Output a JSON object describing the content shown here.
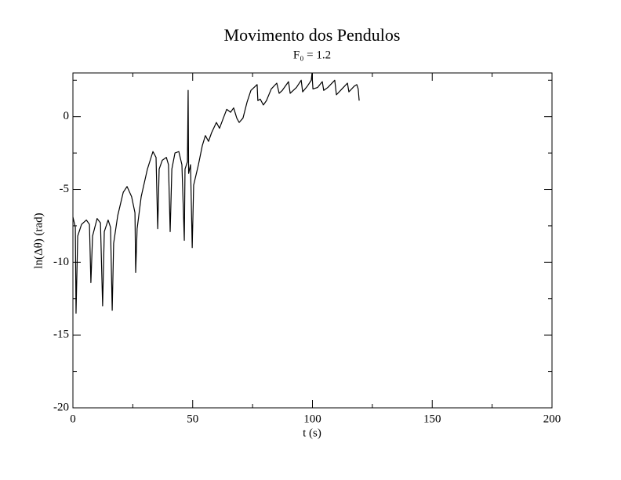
{
  "chart_data": {
    "type": "line",
    "title": "Movimento dos Pendulos",
    "subtitle": "F₀ = 1.2",
    "x_label": "t (s)",
    "y_label": "ln(Δθ) (rad)",
    "x": [
      0,
      1,
      1.3,
      2,
      3.6,
      5.6,
      6.9,
      7.5,
      8.2,
      10.1,
      11.5,
      12.4,
      13.1,
      14.7,
      15.7,
      16.4,
      17,
      18.7,
      21,
      22.6,
      24.5,
      25.9,
      26.2,
      26.8,
      28.5,
      31.1,
      33.4,
      34.7,
      35.4,
      36,
      37.3,
      39,
      39.9,
      40.6,
      41.3,
      42.6,
      44.2,
      45.5,
      46.5,
      46.8,
      47.8,
      48.1,
      48.3,
      49.1,
      49.8,
      50.4,
      52.4,
      54,
      55.3,
      56.6,
      57.9,
      59.9,
      61.2,
      62.8,
      64.2,
      65.8,
      67.1,
      68.4,
      69.4,
      71,
      72.7,
      74.3,
      76.9,
      77.2,
      78.2,
      79.5,
      80.8,
      82.8,
      85.1,
      86.1,
      87.4,
      90,
      90.7,
      93.3,
      95.3,
      95.9,
      97.9,
      99.5,
      99.8,
      100.2,
      102.1,
      104.1,
      104.7,
      106.4,
      109.3,
      110,
      112.3,
      114.6,
      115.2,
      117.5,
      118.5,
      119.1,
      119.5
    ],
    "series": [
      {
        "color": "#000000",
        "values": [
          -6.9,
          -7.6,
          -13.5,
          -8.2,
          -7.4,
          -7.1,
          -7.4,
          -11.4,
          -8.2,
          -7.0,
          -7.3,
          -13.0,
          -7.9,
          -7.1,
          -7.6,
          -13.3,
          -8.7,
          -6.8,
          -5.2,
          -4.8,
          -5.5,
          -6.6,
          -10.7,
          -7.7,
          -5.5,
          -3.6,
          -2.4,
          -2.8,
          -7.7,
          -3.6,
          -3.0,
          -2.8,
          -3.3,
          -7.9,
          -3.6,
          -2.5,
          -2.4,
          -3.3,
          -8.5,
          -3.6,
          -3.1,
          1.8,
          -3.9,
          -3.3,
          -9.0,
          -4.7,
          -3.3,
          -2.0,
          -1.3,
          -1.7,
          -1.1,
          -0.4,
          -0.8,
          -0.1,
          0.5,
          0.3,
          0.6,
          -0.1,
          -0.4,
          -0.1,
          1.0,
          1.8,
          2.2,
          1.1,
          1.2,
          0.8,
          1.1,
          1.9,
          2.3,
          1.6,
          1.8,
          2.4,
          1.6,
          2.0,
          2.5,
          1.7,
          2.1,
          2.5,
          2.96,
          1.9,
          2.0,
          2.4,
          1.8,
          2.0,
          2.5,
          1.5,
          1.9,
          2.3,
          1.7,
          2.1,
          2.2,
          1.9,
          1.1
        ]
      }
    ],
    "xlim": [
      0,
      200
    ],
    "xticks": [
      0,
      50,
      100,
      150,
      200
    ],
    "xminorticks": [
      25,
      75,
      125,
      175
    ],
    "ylim": [
      -20,
      3
    ],
    "yticks": [
      -20,
      -15,
      -10,
      -5,
      0
    ],
    "yminorticks": [
      -17.5,
      -12.5,
      -7.5,
      -2.5,
      2.5
    ]
  }
}
